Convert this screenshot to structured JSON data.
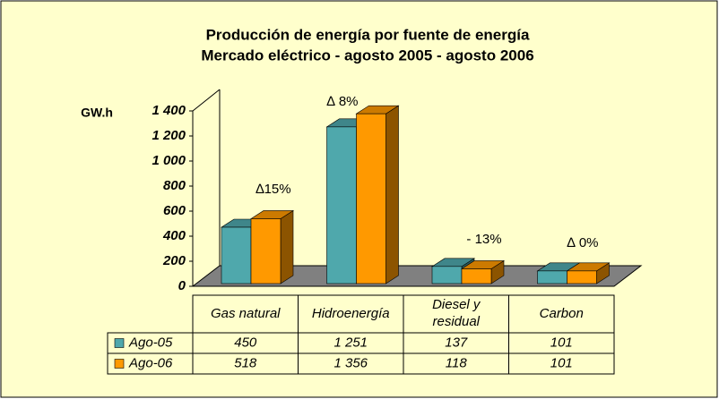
{
  "chart_data": {
    "type": "bar3d",
    "title": "Producción de energía por fuente de energía",
    "subtitle": "Mercado eléctrico - agosto 2005 - agosto 2006",
    "y_label": "GW.h",
    "categories": [
      "Gas natural",
      "Hidroenergía",
      "Diesel y residual",
      "Carbon"
    ],
    "series": [
      {
        "name": "Ago-05",
        "color": "#4fa8ac",
        "values": [
          450,
          1251,
          137,
          101
        ],
        "value_labels": [
          "450",
          "1 251",
          "137",
          "101"
        ]
      },
      {
        "name": "Ago-06",
        "color": "#ff9900",
        "values": [
          518,
          1356,
          118,
          101
        ],
        "value_labels": [
          "518",
          "1 356",
          "118",
          "101"
        ]
      }
    ],
    "annotations": [
      "∆15%",
      "∆ 8%",
      "- 13%",
      "∆ 0%"
    ],
    "ylim": [
      0,
      1400
    ],
    "yticks": [
      0,
      200,
      400,
      600,
      800,
      {
        "value": 1000,
        "label": "1 000"
      },
      {
        "value": 1200,
        "label": "1 200"
      },
      {
        "value": 1400,
        "label": "1 400"
      }
    ]
  }
}
